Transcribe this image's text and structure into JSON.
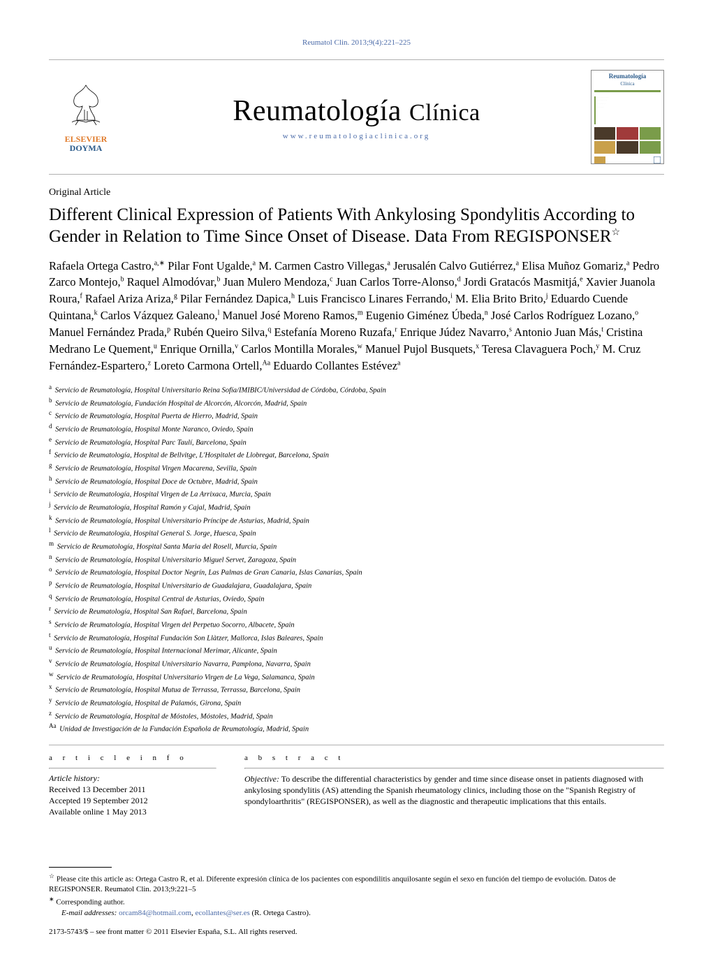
{
  "header_citation": "Reumatol Clin. 2013;9(4):221–225",
  "masthead": {
    "journal_title_main": "Reumatología",
    "journal_title_sub": "Clínica",
    "journal_url": "www.reumatologiaclinica.org",
    "cover_title": "Reumatología",
    "cover_sub": "Clínica"
  },
  "colors": {
    "link": "#4a6aa8",
    "rule": "#b0b0b0",
    "brand_orange": "#e07a2a",
    "brand_blue": "#2a5a8a",
    "cover_green": "#7a9c4a",
    "cover_dark": "#4a3a2a",
    "cover_red": "#a03a3a",
    "cover_yel": "#c9a04a"
  },
  "article_type": "Original Article",
  "title": "Different Clinical Expression of Patients With Ankylosing Spondylitis According to Gender in Relation to Time Since Onset of Disease. Data From REGISPONSER",
  "title_star": "☆",
  "authors_html": "Rafaela Ortega Castro,<sup>a,∗</sup> Pilar Font Ugalde,<sup>a</sup> M. Carmen Castro Villegas,<sup>a</sup> Jerusalén Calvo Gutiérrez,<sup>a</sup> Elisa Muñoz Gomariz,<sup>a</sup> Pedro Zarco Montejo,<sup>b</sup> Raquel Almodóvar,<sup>b</sup> Juan Mulero Mendoza,<sup>c</sup> Juan Carlos Torre-Alonso,<sup>d</sup> Jordi Gratacós Masmitjá,<sup>e</sup> Xavier Juanola Roura,<sup>f</sup> Rafael Ariza Ariza,<sup>g</sup> Pilar Fernández Dapica,<sup>h</sup> Luis Francisco Linares Ferrando,<sup>i</sup> M. Elia Brito Brito,<sup>j</sup> Eduardo Cuende Quintana,<sup>k</sup> Carlos Vázquez Galeano,<sup>l</sup> Manuel José Moreno Ramos,<sup>m</sup> Eugenio Giménez Úbeda,<sup>n</sup> José Carlos Rodríguez Lozano,<sup>o</sup> Manuel Fernández Prada,<sup>p</sup> Rubén Queiro Silva,<sup>q</sup> Estefanía Moreno Ruzafa,<sup>r</sup> Enrique Júdez Navarro,<sup>s</sup> Antonio Juan Más,<sup>t</sup> Cristina Medrano Le Quement,<sup>u</sup> Enrique Ornilla,<sup>v</sup> Carlos Montilla Morales,<sup>w</sup> Manuel Pujol Busquets,<sup>x</sup> Teresa Clavaguera Poch,<sup>y</sup> M. Cruz Fernández-Espartero,<sup>z</sup> Loreto Carmona Ortell,<sup>Aa</sup> Eduardo Collantes Estévez<sup>a</sup>",
  "affiliations": [
    {
      "k": "a",
      "t": "Servicio de Reumatología, Hospital Universitario Reina Sofía/IMIBIC/Universidad de Córdoba, Córdoba, Spain"
    },
    {
      "k": "b",
      "t": "Servicio de Reumatología, Fundación Hospital de Alcorcón, Alcorcón, Madrid, Spain"
    },
    {
      "k": "c",
      "t": "Servicio de Reumatología, Hospital Puerta de Hierro, Madrid, Spain"
    },
    {
      "k": "d",
      "t": "Servicio de Reumatología, Hospital Monte Naranco, Oviedo, Spain"
    },
    {
      "k": "e",
      "t": "Servicio de Reumatología, Hospital Parc Taulí, Barcelona, Spain"
    },
    {
      "k": "f",
      "t": "Servicio de Reumatología, Hospital de Bellvitge, L'Hospitalet de Llobregat, Barcelona, Spain"
    },
    {
      "k": "g",
      "t": "Servicio de Reumatología, Hospital Virgen Macarena, Sevilla, Spain"
    },
    {
      "k": "h",
      "t": "Servicio de Reumatología, Hospital Doce de Octubre, Madrid, Spain"
    },
    {
      "k": "i",
      "t": "Servicio de Reumatología, Hospital Virgen de La Arrixaca, Murcia, Spain"
    },
    {
      "k": "j",
      "t": "Servicio de Reumatología, Hospital Ramón y Cajal, Madrid, Spain"
    },
    {
      "k": "k",
      "t": "Servicio de Reumatología, Hospital Universitario Príncipe de Asturias, Madrid, Spain"
    },
    {
      "k": "l",
      "t": "Servicio de Reumatología, Hospital General S. Jorge, Huesca, Spain"
    },
    {
      "k": "m",
      "t": "Servicio de Reumatología, Hospital Santa Maria del Rosell, Murcia, Spain"
    },
    {
      "k": "n",
      "t": "Servicio de Reumatología, Hospital Universitario Miguel Servet, Zaragoza, Spain"
    },
    {
      "k": "o",
      "t": "Servicio de Reumatología, Hospital Doctor Negrín, Las Palmas de Gran Canaria, Islas Canarias, Spain"
    },
    {
      "k": "p",
      "t": "Servicio de Reumatología, Hospital Universitario de Guadalajara, Guadalajara, Spain"
    },
    {
      "k": "q",
      "t": "Servicio de Reumatología, Hospital Central de Asturias, Oviedo, Spain"
    },
    {
      "k": "r",
      "t": "Servicio de Reumatología, Hospital San Rafael, Barcelona, Spain"
    },
    {
      "k": "s",
      "t": "Servicio de Reumatología, Hospital Virgen del Perpetuo Socorro, Albacete, Spain"
    },
    {
      "k": "t",
      "t": "Servicio de Reumatología, Hospital Fundación Son Llàtzer, Mallorca, Islas Baleares, Spain"
    },
    {
      "k": "u",
      "t": "Servicio de Reumatología, Hospital Internacional Merimar, Alicante, Spain"
    },
    {
      "k": "v",
      "t": "Servicio de Reumatología, Hospital Universitario Navarra, Pamplona, Navarra, Spain"
    },
    {
      "k": "w",
      "t": "Servicio de Reumatología, Hospital Universitario Virgen de La Vega, Salamanca, Spain"
    },
    {
      "k": "x",
      "t": "Servicio de Reumatología, Hospital Mutua de Terrassa, Terrassa, Barcelona, Spain"
    },
    {
      "k": "y",
      "t": "Servicio de Reumatología, Hospital de Palamós, Girona, Spain"
    },
    {
      "k": "z",
      "t": "Servicio de Reumatología, Hospital de Móstoles, Móstoles, Madrid, Spain"
    },
    {
      "k": "Aa",
      "t": "Unidad de Investigación de la Fundación Española de Reumatología, Madrid, Spain"
    }
  ],
  "info": {
    "head": "a r t i c l e   i n f o",
    "history_label": "Article history:",
    "received": "Received 13 December 2011",
    "accepted": "Accepted 19 September 2012",
    "online": "Available online 1 May 2013"
  },
  "abstract": {
    "head": "a b s t r a c t",
    "lead": "Objective:",
    "text": " To describe the differential characteristics by gender and time since disease onset in patients diagnosed with ankylosing spondylitis (AS) attending the Spanish rheumatology clinics, including those on the \"Spanish Registry of spondyloarthritis\" (REGISPONSER), as well as the diagnostic and therapeutic implications that this entails."
  },
  "footnotes": {
    "cite": "Please cite this article as: Ortega Castro R, et al. Diferente expresión clínica de los pacientes con espondilitis anquilosante según el sexo en función del tiempo de evolución. Datos de REGISPONSER. Reumatol Clin. 2013;9:221–5",
    "corr": "Corresponding author.",
    "email_label": "E-mail addresses:",
    "email1": "orcam84@hotmail.com",
    "email2": "ecollantes@ser.es",
    "email_tail": " (R. Ortega Castro)."
  },
  "copyright": "2173-5743/$ – see front matter © 2011 Elsevier España, S.L. All rights reserved."
}
